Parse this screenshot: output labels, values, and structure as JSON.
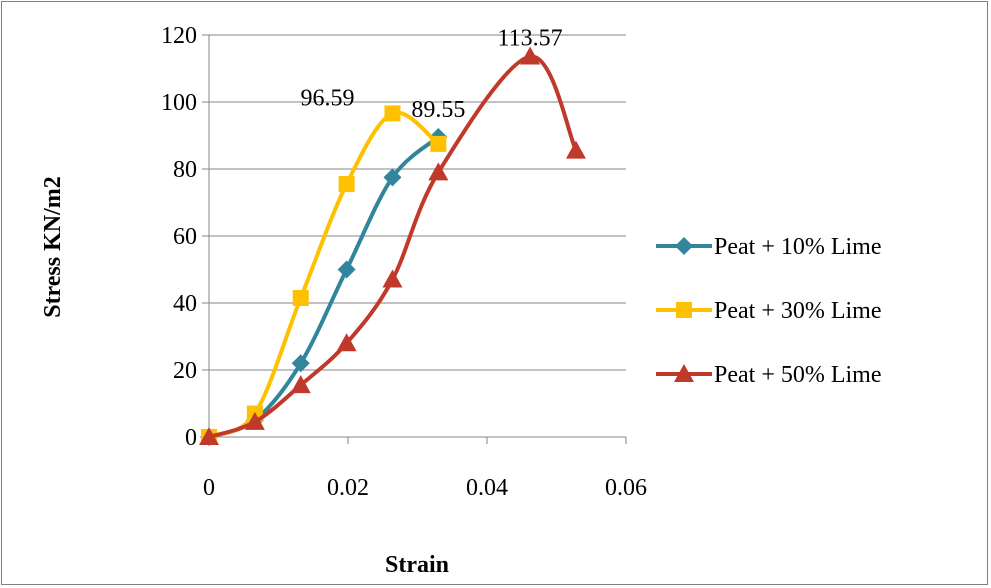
{
  "chart_data": {
    "type": "line",
    "title": "",
    "xlabel": "Strain",
    "ylabel": "Stress KN/m2",
    "xlim": [
      0,
      0.06
    ],
    "ylim": [
      0,
      120
    ],
    "x_ticks": [
      0,
      0.02,
      0.04,
      0.06
    ],
    "x_tick_labels": [
      "0",
      "0.02",
      "0.04",
      "0.06"
    ],
    "y_ticks": [
      0,
      20,
      40,
      60,
      80,
      100,
      120
    ],
    "y_tick_labels": [
      "0",
      "20",
      "40",
      "60",
      "80",
      "100",
      "120"
    ],
    "grid": "horizontal",
    "legend_position": "right",
    "series": [
      {
        "name": "Peat + 10% Lime",
        "color": "#31859C",
        "marker": "diamond",
        "points": [
          [
            0,
            0
          ],
          [
            0.0066,
            5
          ],
          [
            0.0132,
            22
          ],
          [
            0.0198,
            50
          ],
          [
            0.0264,
            77.5
          ],
          [
            0.033,
            89.55
          ]
        ],
        "peak_label": "89.55"
      },
      {
        "name": "Peat + 30% Lime",
        "color": "#FFC000",
        "marker": "square",
        "points": [
          [
            0,
            0
          ],
          [
            0.0066,
            7
          ],
          [
            0.0132,
            41.5
          ],
          [
            0.0198,
            75.5
          ],
          [
            0.0264,
            96.59
          ],
          [
            0.033,
            87.5
          ]
        ],
        "peak_label": "96.59"
      },
      {
        "name": "Peat + 50% Lime",
        "color": "#C0392B",
        "marker": "triangle",
        "points": [
          [
            0,
            0
          ],
          [
            0.0066,
            4.5
          ],
          [
            0.0132,
            15.5
          ],
          [
            0.0198,
            28
          ],
          [
            0.0264,
            47
          ],
          [
            0.033,
            79
          ],
          [
            0.0462,
            113.57
          ],
          [
            0.0528,
            85.5
          ]
        ],
        "peak_label": "113.57"
      }
    ]
  }
}
